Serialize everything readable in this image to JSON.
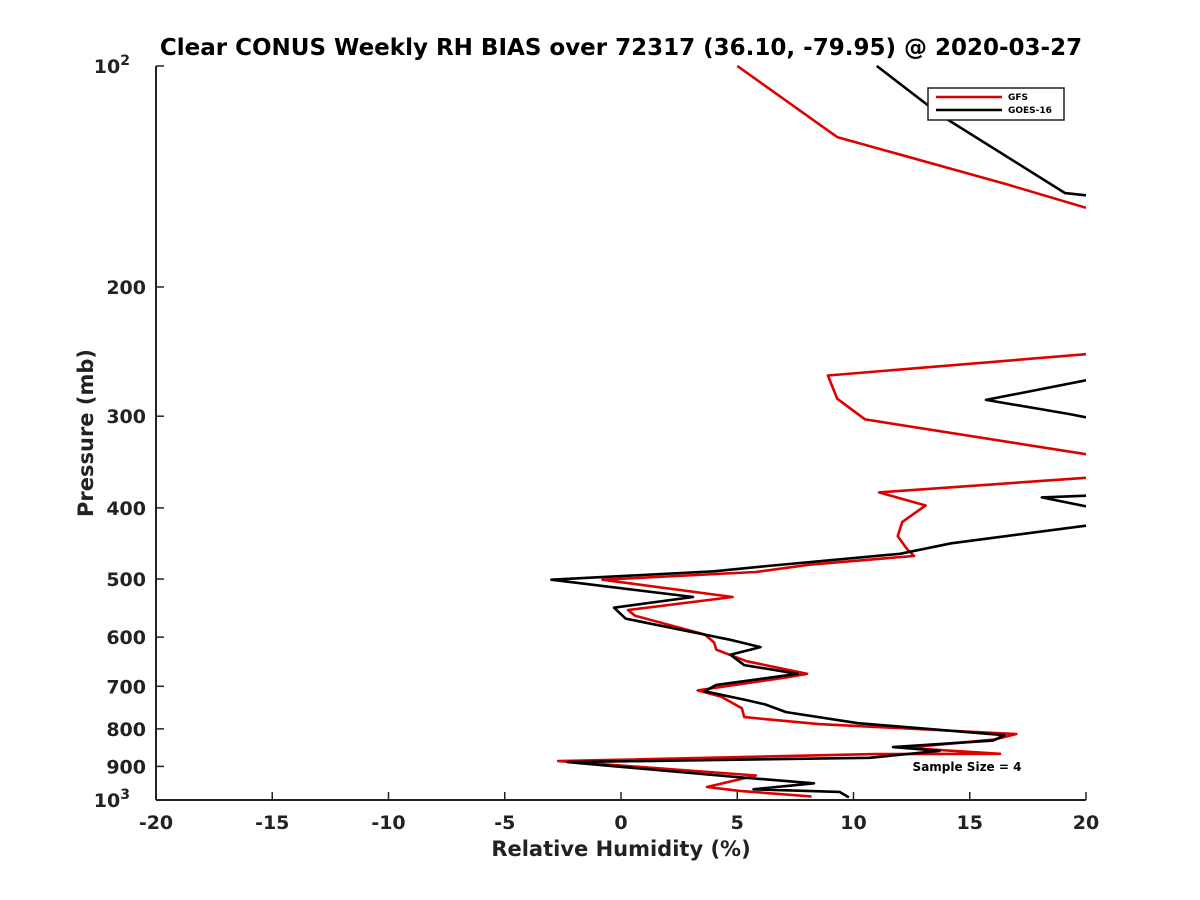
{
  "chart_data": {
    "type": "line",
    "title": "Clear CONUS Weekly RH BIAS over 72317 (36.10, -79.95) @ 2020-03-27",
    "xlabel": "Relative Humidity (%)",
    "ylabel": "Pressure (mb)",
    "xlim": [
      -20,
      20
    ],
    "ylim": [
      100,
      1000
    ],
    "y_scale": "log",
    "y_reversed": true,
    "x_ticks": [
      "-20",
      "-15",
      "-10",
      "-5",
      "0",
      "5",
      "10",
      "15",
      "20"
    ],
    "y_ticks": [
      {
        "value": 100,
        "base": "10",
        "exp": "2"
      },
      {
        "value": 200,
        "label": "200"
      },
      {
        "value": 300,
        "label": "300"
      },
      {
        "value": 400,
        "label": "400"
      },
      {
        "value": 500,
        "label": "500"
      },
      {
        "value": 600,
        "label": "600"
      },
      {
        "value": 700,
        "label": "700"
      },
      {
        "value": 800,
        "label": "800"
      },
      {
        "value": 900,
        "label": "900"
      },
      {
        "value": 1000,
        "base": "10",
        "exp": "3"
      }
    ],
    "legend_position": "top-right",
    "annotation": "Sample Size = 4",
    "series": [
      {
        "name": "GFS",
        "color": "#dd0000",
        "points": [
          [
            5.0,
            100
          ],
          [
            9.3,
            125
          ],
          [
            16.6,
            145
          ],
          [
            20.0,
            156
          ],
          null,
          [
            20.0,
            247
          ],
          [
            8.9,
            264
          ],
          [
            9.3,
            284
          ],
          [
            10.5,
            303
          ],
          [
            20.0,
            338
          ],
          null,
          [
            20.0,
            364
          ],
          [
            11.1,
            381
          ],
          [
            13.1,
            397
          ],
          [
            12.1,
            418
          ],
          [
            11.9,
            437
          ],
          [
            12.3,
            455
          ],
          [
            12.6,
            465
          ],
          [
            8.1,
            478
          ],
          [
            5.8,
            489
          ],
          [
            -0.8,
            501
          ],
          [
            4.8,
            529
          ],
          [
            0.3,
            551
          ],
          [
            0.6,
            561
          ],
          [
            3.6,
            595
          ],
          [
            4.0,
            610
          ],
          [
            4.1,
            624
          ],
          [
            5.4,
            647
          ],
          [
            8.0,
            673
          ],
          [
            7.2,
            680
          ],
          [
            3.3,
            709
          ],
          [
            4.3,
            723
          ],
          [
            5.2,
            750
          ],
          [
            5.3,
            771
          ],
          [
            8.5,
            788
          ],
          [
            17.0,
            813
          ],
          [
            16.1,
            827
          ],
          [
            12.2,
            849
          ],
          [
            16.3,
            865
          ],
          [
            10.9,
            866
          ],
          [
            -2.7,
            885
          ],
          [
            -2.0,
            888
          ],
          [
            5.8,
            926
          ],
          [
            3.7,
            960
          ],
          [
            5.1,
            972
          ],
          [
            8.2,
            989
          ]
        ]
      },
      {
        "name": "GOES-16",
        "color": "#000000",
        "points": [
          [
            11.0,
            100
          ],
          [
            13.8,
            117
          ],
          [
            19.1,
            149
          ],
          [
            20.0,
            150
          ],
          null,
          [
            20.0,
            268
          ],
          [
            15.7,
            285
          ],
          [
            19.3,
            298
          ],
          [
            20.0,
            301
          ],
          null,
          [
            20.0,
            385
          ],
          [
            18.1,
            387
          ],
          [
            20.0,
            398
          ],
          null,
          [
            20.0,
            423
          ],
          [
            14.2,
            447
          ],
          [
            12.0,
            462
          ],
          [
            6.3,
            480
          ],
          [
            4.0,
            488
          ],
          [
            -3.0,
            501
          ],
          [
            3.1,
            529
          ],
          [
            -0.3,
            547
          ],
          [
            0.2,
            566
          ],
          [
            4.7,
            605
          ],
          [
            6.0,
            619
          ],
          [
            4.7,
            634
          ],
          [
            5.3,
            655
          ],
          [
            7.6,
            673
          ],
          [
            4.1,
            697
          ],
          [
            3.6,
            711
          ],
          [
            5.4,
            731
          ],
          [
            6.2,
            741
          ],
          [
            7.1,
            759
          ],
          [
            10.2,
            786
          ],
          [
            16.5,
            816
          ],
          [
            16.0,
            830
          ],
          [
            11.7,
            847
          ],
          [
            13.7,
            857
          ],
          [
            10.7,
            876
          ],
          [
            -2.3,
            888
          ],
          [
            4.7,
            929
          ],
          [
            8.3,
            949
          ],
          [
            5.7,
            967
          ],
          [
            9.4,
            975
          ],
          [
            9.8,
            992
          ]
        ]
      }
    ]
  }
}
